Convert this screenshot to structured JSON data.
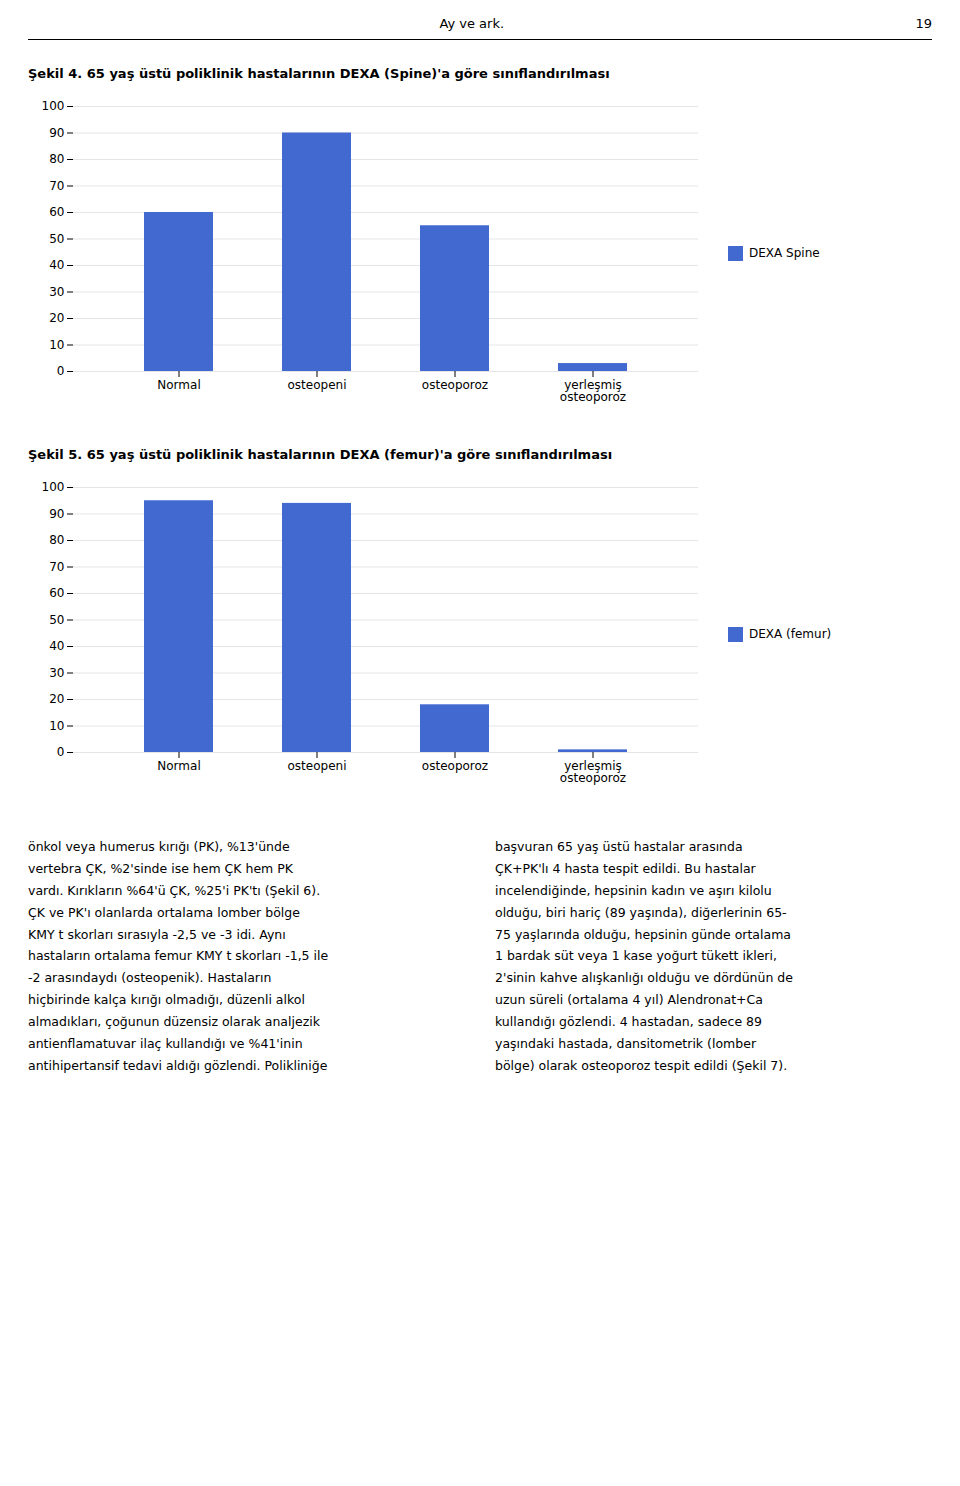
{
  "header": [
    "Ay ve ark.",
    "19"
  ],
  "text_columns": [
    [
      "önkol veya humerus kırığı (PK), %13'ünde",
      "vertebra ÇK, %2'sinde ise hem ÇK hem PK",
      "vardı. Kırıkların %64'ü ÇK, %25'i PK'tı (Şekil 6).",
      "ÇK ve PK'ı olanlarda ortalama lomber bölge",
      "KMY t skorları sırasıyla -2,5 ve -3 idi. Aynı",
      "hastaların ortalama femur KMY t skorları -1,5 ile",
      "-2 arasındaydı (osteopenik). Hastaların",
      "hiçbirinde kalça kırığı olmadığı, düzenli alkol",
      "almadıkları, çoğunun düzensiz olarak analjezik",
      "antienflamatuvar ilaç kullandığı ve %41'inin",
      "antihipertansif tedavi aldığı gözlendi. Polikliniğe"
    ],
    [
      "başvuran 65 yaş üstü hastalar arasında",
      "ÇK+PK'lı 4 hasta tespit edildi. Bu hastalar",
      "incelendiğinde, hepsinin kadın ve aşırı kilolu",
      "olduğu, biri hariç (89 yaşında), diğerlerinin 65-",
      "75 yaşlarında olduğu, hepsinin günde ortalama",
      "1 bardak süt veya 1 kase yoğurt tükett ikleri,",
      "2'sinin kahve alışkanlığı olduğu ve dördünün de",
      "uzun süreli (ortalama 4 yıl) Alendronat+Ca",
      "kullandığı gözlendi. 4 hastadan, sadece 89",
      "yaşındaki hastada, dansitometrik (lomber",
      "bölge) olarak osteoporoz tespit edildi (Şekil 7)."
    ]
  ],
  "chart_data": [
    {
      "type": "bar",
      "title": "Şekil 4. 65 yaş üstü poliklinik hastalarının DEXA (Spine)'a göre sınıflandırılması",
      "categories": [
        "Normal",
        "osteopeni",
        "osteoporoz",
        "yerleşmiş\nosteoporoz"
      ],
      "series": [
        {
          "name": "DEXA Spine",
          "values": [
            60,
            90,
            55,
            3
          ]
        }
      ],
      "ylim": [
        0,
        100
      ],
      "yticks": [
        0,
        10,
        20,
        30,
        40,
        50,
        60,
        70,
        80,
        90,
        100
      ],
      "grid": true,
      "legend": "right"
    },
    {
      "type": "bar",
      "title": "Şekil 5. 65 yaş üstü poliklinik hastalarının DEXA (femur)'a göre sınıflandırılması",
      "categories": [
        "Normal",
        "osteopeni",
        "osteoporoz",
        "yerleşmiş\nosteoporoz"
      ],
      "series": [
        {
          "name": "DEXA (femur)",
          "values": [
            95,
            94,
            18,
            1
          ]
        }
      ],
      "ylim": [
        0,
        100
      ],
      "yticks": [
        0,
        10,
        20,
        30,
        40,
        50,
        60,
        70,
        80,
        90,
        100
      ],
      "grid": true,
      "legend": "right"
    }
  ]
}
